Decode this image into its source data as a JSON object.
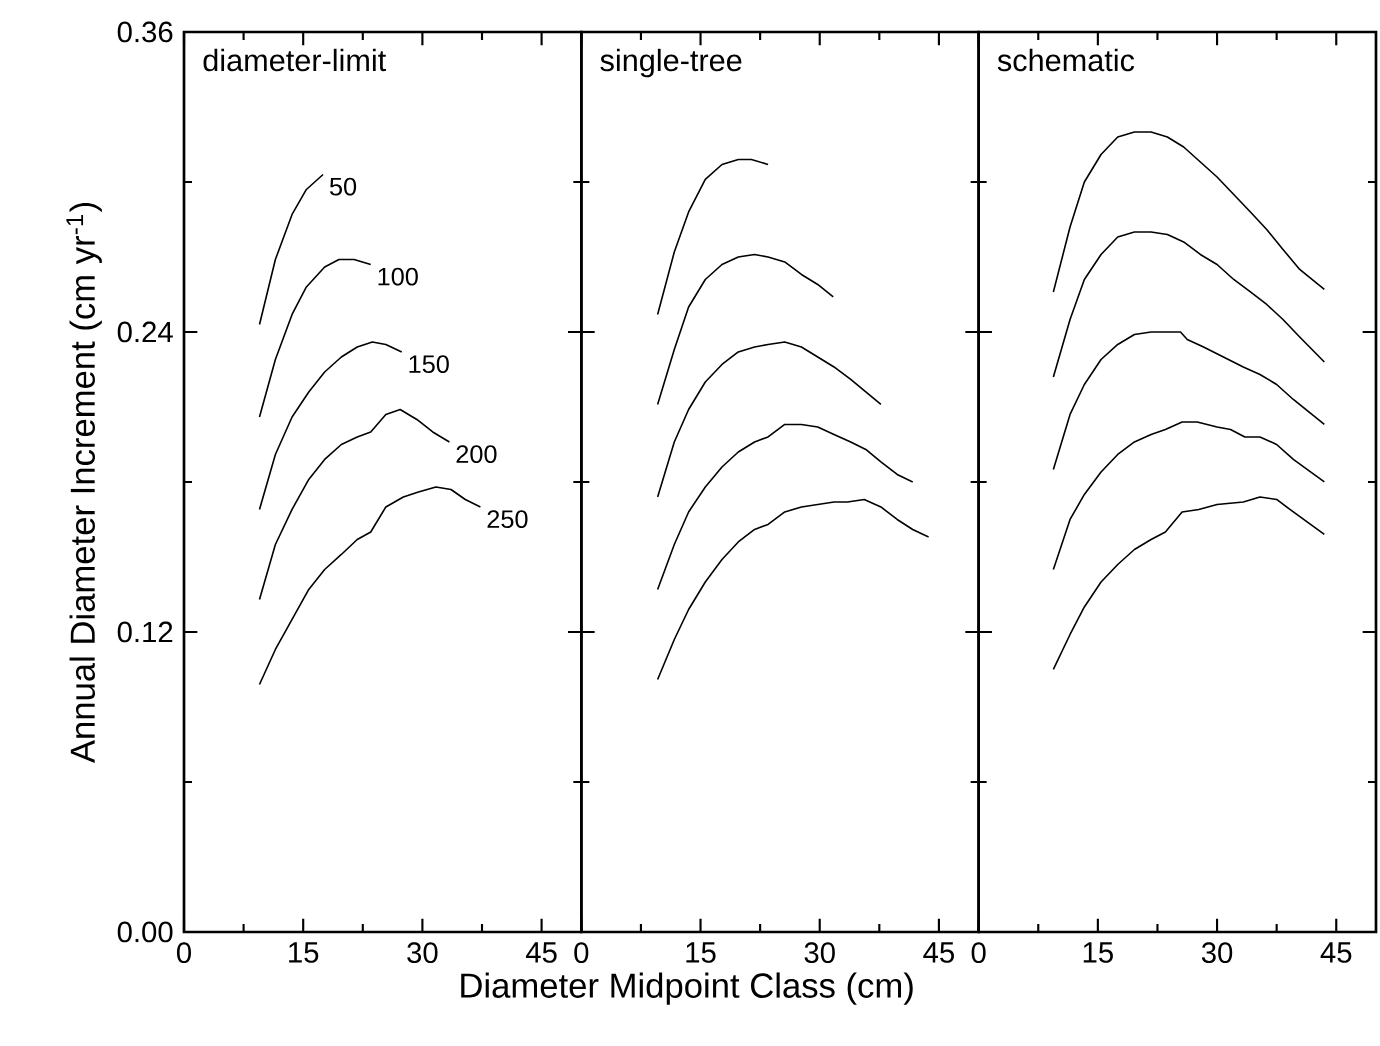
{
  "chart_data": [
    {
      "type": "line",
      "title": "diameter-limit",
      "ylabel": "Annual Diameter Increment (cm yr$^{-1}$)",
      "xlim": [
        0,
        50
      ],
      "ylim": [
        0,
        0.36
      ],
      "xticks": [
        0,
        15,
        30,
        45
      ],
      "yticks": [
        {
          "value": 0,
          "label": "0.00"
        },
        0.12,
        0.24,
        0.36
      ],
      "annotations": [
        {
          "text": "50",
          "x": 17.5,
          "y": 0.303
        },
        {
          "text": "100",
          "x": 23.5,
          "y": 0.267
        },
        {
          "text": "150",
          "x": 27.4,
          "y": 0.232
        },
        {
          "text": "200",
          "x": 33.4,
          "y": 0.196
        },
        {
          "text": "250",
          "x": 37.3,
          "y": 0.17
        }
      ],
      "series": [
        {
          "color": "#000000",
          "x": [
            9.5,
            11.5,
            13.6,
            15.4,
            17.5
          ],
          "values": [
            0.243,
            0.269,
            0.287,
            0.297,
            0.303
          ]
        },
        {
          "color": "#000000",
          "x": [
            9.5,
            11.5,
            13.6,
            15.4,
            17.7,
            19.5,
            21.4,
            23.5
          ],
          "values": [
            0.206,
            0.229,
            0.247,
            0.258,
            0.266,
            0.269,
            0.269,
            0.267
          ]
        },
        {
          "color": "#000000",
          "x": [
            9.5,
            11.5,
            13.6,
            15.7,
            17.7,
            19.8,
            21.8,
            23.7,
            25.4,
            27.4
          ],
          "values": [
            0.169,
            0.191,
            0.206,
            0.216,
            0.224,
            0.23,
            0.234,
            0.236,
            0.235,
            0.232
          ]
        },
        {
          "color": "#000000",
          "x": [
            9.5,
            11.5,
            13.6,
            15.7,
            17.7,
            19.8,
            21.8,
            23.5,
            25.4,
            27.2,
            29.3,
            31.3,
            33.4
          ],
          "values": [
            0.133,
            0.155,
            0.169,
            0.181,
            0.189,
            0.195,
            0.198,
            0.2,
            0.207,
            0.209,
            0.205,
            0.2,
            0.196
          ]
        },
        {
          "color": "#000000",
          "x": [
            9.5,
            11.5,
            13.6,
            15.7,
            17.7,
            19.8,
            21.8,
            23.5,
            25.4,
            27.6,
            29.5,
            31.7,
            33.6,
            35.4,
            37.3
          ],
          "values": [
            0.099,
            0.113,
            0.125,
            0.137,
            0.145,
            0.151,
            0.157,
            0.16,
            0.17,
            0.174,
            0.176,
            0.178,
            0.177,
            0.173,
            0.17
          ]
        }
      ]
    },
    {
      "type": "line",
      "title": "single-tree",
      "xlabel": "Diameter Midpoint Class (cm)",
      "xlim": [
        0,
        50
      ],
      "ylim": [
        0,
        0.36
      ],
      "xticks": [
        0,
        15,
        30,
        45
      ],
      "yticks": [
        0,
        0.12,
        0.24,
        0.36
      ],
      "tick_labels": "x",
      "series": [
        {
          "color": "#000000",
          "x": [
            9.6,
            11.7,
            13.5,
            15.6,
            17.7,
            19.75,
            21.4,
            23.5
          ],
          "values": [
            0.247,
            0.272,
            0.288,
            0.301,
            0.307,
            0.309,
            0.309,
            0.307
          ]
        },
        {
          "color": "#000000",
          "x": [
            9.6,
            11.7,
            13.5,
            15.6,
            17.7,
            19.75,
            21.8,
            23.5,
            25.6,
            27.7,
            29.75,
            31.7
          ],
          "values": [
            0.211,
            0.233,
            0.25,
            0.261,
            0.267,
            0.27,
            0.271,
            0.27,
            0.268,
            0.263,
            0.259,
            0.254
          ]
        },
        {
          "color": "#000000",
          "x": [
            9.6,
            11.7,
            13.5,
            15.6,
            17.7,
            19.75,
            21.8,
            23.5,
            25.6,
            27.7,
            29.75,
            31.8,
            33.9,
            35.8,
            37.7
          ],
          "values": [
            0.174,
            0.196,
            0.209,
            0.22,
            0.227,
            0.232,
            0.234,
            0.235,
            0.236,
            0.234,
            0.23,
            0.226,
            0.221,
            0.216,
            0.211
          ]
        },
        {
          "color": "#000000",
          "x": [
            9.6,
            11.7,
            13.5,
            15.6,
            17.7,
            19.75,
            21.8,
            23.5,
            25.6,
            27.7,
            29.75,
            31.8,
            33.9,
            35.8,
            37.7,
            39.75,
            41.7
          ],
          "values": [
            0.137,
            0.155,
            0.168,
            0.178,
            0.186,
            0.192,
            0.196,
            0.198,
            0.203,
            0.203,
            0.202,
            0.199,
            0.196,
            0.193,
            0.188,
            0.183,
            0.18
          ]
        },
        {
          "color": "#000000",
          "x": [
            9.6,
            11.7,
            13.5,
            15.6,
            17.7,
            19.75,
            21.8,
            23.5,
            25.6,
            27.7,
            29.75,
            31.8,
            33.5,
            35.6,
            37.7,
            39.75,
            41.7,
            43.7
          ],
          "values": [
            0.101,
            0.117,
            0.129,
            0.14,
            0.149,
            0.156,
            0.161,
            0.163,
            0.168,
            0.17,
            0.171,
            0.172,
            0.172,
            0.173,
            0.17,
            0.165,
            0.161,
            0.158
          ]
        }
      ]
    },
    {
      "type": "line",
      "title": "schematic",
      "xlim": [
        0,
        50
      ],
      "ylim": [
        0,
        0.36
      ],
      "xticks": [
        0,
        15,
        30,
        45
      ],
      "yticks": [
        0,
        0.12,
        0.24,
        0.36
      ],
      "tick_labels": "x",
      "series": [
        {
          "color": "#000000",
          "x": [
            9.4,
            11.5,
            13.3,
            15.4,
            17.5,
            19.6,
            21.7,
            23.75,
            25.8,
            27.9,
            30,
            32.1,
            34.2,
            36.25,
            38.3,
            40.4,
            43.5
          ],
          "values": [
            0.256,
            0.282,
            0.3,
            0.311,
            0.318,
            0.32,
            0.32,
            0.318,
            0.314,
            0.308,
            0.302,
            0.295,
            0.288,
            0.281,
            0.273,
            0.265,
            0.257
          ]
        },
        {
          "color": "#000000",
          "x": [
            9.4,
            11.5,
            13.3,
            15.4,
            17.5,
            19.6,
            21.7,
            23.75,
            25.8,
            27.9,
            30,
            32.1,
            34.2,
            36.25,
            38.3,
            40.4,
            43.5
          ],
          "values": [
            0.222,
            0.245,
            0.261,
            0.271,
            0.278,
            0.28,
            0.28,
            0.279,
            0.276,
            0.271,
            0.267,
            0.261,
            0.256,
            0.251,
            0.245,
            0.238,
            0.228
          ]
        },
        {
          "color": "#000000",
          "x": [
            9.4,
            11.5,
            13.3,
            15.4,
            17.5,
            19.6,
            21.7,
            23.75,
            25.4,
            26.25,
            28.3,
            30.8,
            33.3,
            35.4,
            37.5,
            39.6,
            43.5
          ],
          "values": [
            0.185,
            0.207,
            0.219,
            0.229,
            0.235,
            0.239,
            0.24,
            0.24,
            0.24,
            0.237,
            0.234,
            0.23,
            0.226,
            0.223,
            0.219,
            0.213,
            0.203
          ]
        },
        {
          "color": "#000000",
          "x": [
            9.4,
            11.5,
            13.3,
            15.4,
            17.5,
            19.6,
            21.7,
            23.5,
            25.6,
            27.5,
            30,
            31.7,
            33.5,
            35.4,
            37.5,
            39.6,
            43.5
          ],
          "values": [
            0.145,
            0.165,
            0.175,
            0.184,
            0.191,
            0.196,
            0.199,
            0.201,
            0.204,
            0.204,
            0.202,
            0.201,
            0.198,
            0.198,
            0.195,
            0.189,
            0.18
          ]
        },
        {
          "color": "#000000",
          "x": [
            9.4,
            11.5,
            13.3,
            15.4,
            17.5,
            19.6,
            21.7,
            23.5,
            25.6,
            27.7,
            30,
            33.3,
            35.4,
            37.5,
            39.6,
            43.5
          ],
          "values": [
            0.105,
            0.119,
            0.13,
            0.14,
            0.147,
            0.153,
            0.157,
            0.16,
            0.168,
            0.169,
            0.171,
            0.172,
            0.174,
            0.173,
            0.168,
            0.159
          ]
        }
      ]
    }
  ]
}
